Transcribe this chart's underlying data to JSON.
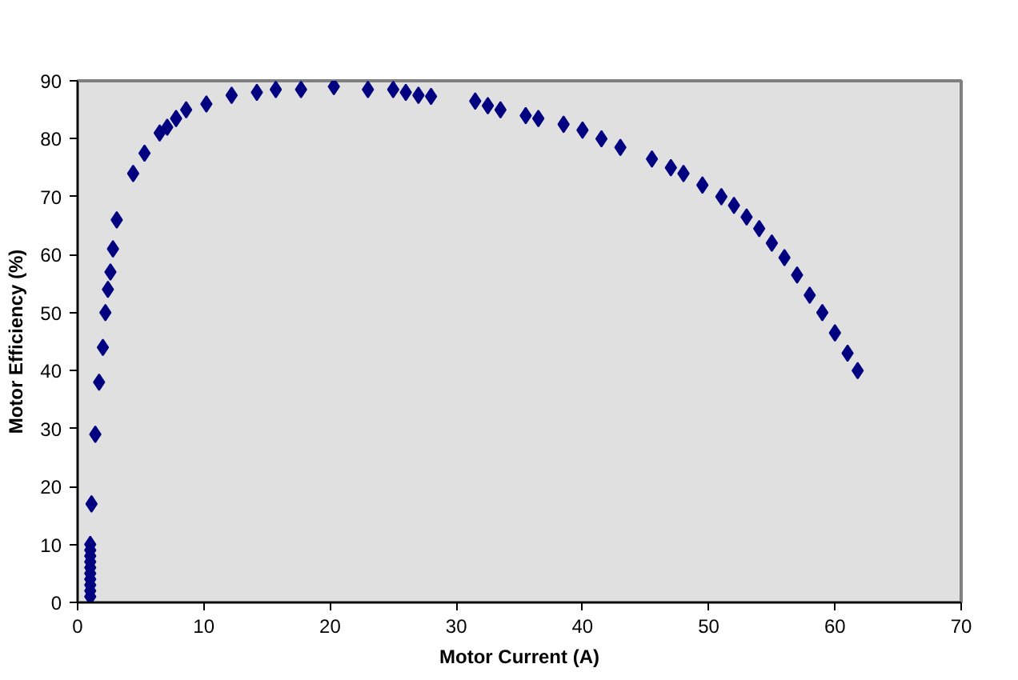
{
  "chart_data": {
    "type": "scatter",
    "xlabel": "Motor Current (A)",
    "ylabel": "Motor Efficiency (%)",
    "xlim": [
      0,
      70
    ],
    "ylim": [
      0,
      90
    ],
    "xticks": [
      0,
      10,
      20,
      30,
      40,
      50,
      60,
      70
    ],
    "yticks": [
      0,
      10,
      20,
      30,
      40,
      50,
      60,
      70,
      80,
      90
    ],
    "grid": false,
    "marker": "diamond",
    "series": [
      {
        "color": "#000080",
        "x": [
          1,
          1,
          1,
          1,
          1,
          1,
          1,
          1,
          1,
          1,
          1.1,
          1.4,
          1.7,
          2.0,
          2.2,
          2.4,
          2.6,
          2.8,
          3.1,
          4.4,
          5.3,
          6.5,
          7.1,
          7.8,
          8.6,
          10.2,
          12.2,
          14.2,
          15.7,
          17.7,
          20.3,
          23,
          25,
          26,
          27,
          28,
          31.5,
          32.5,
          33.5,
          35.5,
          36.5,
          38.5,
          40,
          41.5,
          43,
          45.5,
          47,
          48,
          49.5,
          51,
          52,
          53,
          54,
          55,
          56,
          57,
          58,
          59,
          60,
          61,
          61.8
        ],
        "values": [
          1,
          2,
          3,
          4,
          5,
          6,
          7,
          8,
          9,
          10,
          17,
          29,
          38,
          44,
          50,
          54,
          57,
          61,
          66,
          74,
          77.5,
          81,
          82,
          83.5,
          85,
          86,
          87.5,
          88,
          88.5,
          88.5,
          89,
          88.5,
          88.5,
          88,
          87.5,
          87.3,
          86.5,
          85.7,
          85,
          84,
          83.5,
          82.5,
          81.5,
          80,
          78.5,
          76.5,
          75,
          74,
          72,
          70,
          68.5,
          66.5,
          64.5,
          62,
          59.5,
          56.5,
          53,
          50,
          46.5,
          43,
          40
        ]
      }
    ]
  }
}
